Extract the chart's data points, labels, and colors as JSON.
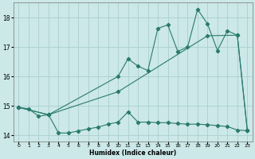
{
  "title": "",
  "xlabel": "Humidex (Indice chaleur)",
  "bg_color": "#cce8e8",
  "line_color": "#2a7a6e",
  "grid_color": "#aad0d0",
  "xlim": [
    -0.5,
    23.5
  ],
  "ylim": [
    13.8,
    18.5
  ],
  "yticks": [
    14,
    15,
    16,
    17,
    18
  ],
  "xticks": [
    0,
    1,
    2,
    3,
    4,
    5,
    6,
    7,
    8,
    9,
    10,
    11,
    12,
    13,
    14,
    15,
    16,
    17,
    18,
    19,
    20,
    21,
    22,
    23
  ],
  "curve1_x": [
    0,
    1,
    2,
    3,
    4,
    5,
    6,
    7,
    8,
    9,
    10,
    11,
    12,
    13,
    14,
    15,
    16,
    17,
    18,
    19,
    20,
    21,
    22,
    23
  ],
  "curve1_y": [
    14.95,
    14.9,
    14.65,
    14.7,
    14.08,
    14.08,
    14.15,
    14.22,
    14.28,
    14.38,
    14.45,
    14.8,
    14.45,
    14.45,
    14.43,
    14.43,
    14.4,
    14.38,
    14.38,
    14.36,
    14.33,
    14.3,
    14.18,
    14.16
  ],
  "curve2_x": [
    0,
    3,
    10,
    11,
    12,
    13,
    14,
    15,
    16,
    17,
    18,
    19,
    20,
    21,
    22,
    23
  ],
  "curve2_y": [
    14.95,
    14.7,
    16.0,
    16.6,
    16.35,
    16.2,
    17.63,
    17.75,
    16.85,
    17.0,
    18.28,
    17.78,
    16.88,
    17.55,
    17.4,
    14.18
  ],
  "curve3_x": [
    0,
    3,
    10,
    19,
    22,
    23
  ],
  "curve3_y": [
    14.95,
    14.7,
    15.48,
    17.38,
    17.4,
    14.18
  ]
}
